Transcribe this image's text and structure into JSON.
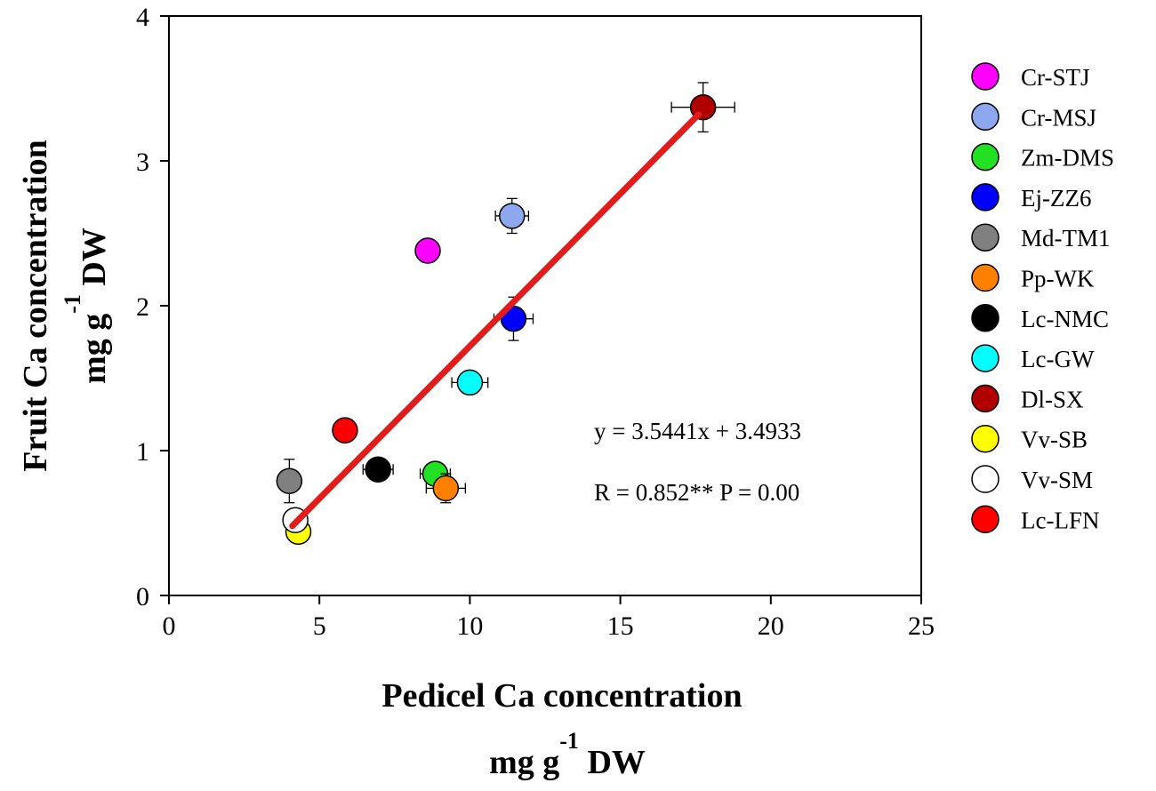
{
  "chart_data": {
    "type": "scatter",
    "xlabel": {
      "main": "Pedicel Ca concentration",
      "unit_prefix": "mg g",
      "unit_exp": "-1",
      "unit_suffix": " DW"
    },
    "ylabel": {
      "main": "Fruit Ca concentration",
      "unit_prefix": "mg g",
      "unit_exp": "-1",
      "unit_suffix": " DW"
    },
    "xlim": [
      0,
      25
    ],
    "ylim": [
      0,
      4
    ],
    "xticks": [
      "0",
      "5",
      "10",
      "15",
      "20",
      "25"
    ],
    "yticks": [
      "0",
      "1",
      "2",
      "3",
      "4"
    ],
    "grid": false,
    "legend_position": "right",
    "series": [
      {
        "name": "Cr-STJ",
        "color": "#ff00ff",
        "x": 8.6,
        "y": 2.38,
        "xerr": 0.3,
        "yerr": 0.08
      },
      {
        "name": "Cr-MSJ",
        "color": "#8ea8f0",
        "x": 11.4,
        "y": 2.62,
        "xerr": 0.55,
        "yerr": 0.12
      },
      {
        "name": "Zm-DMS",
        "color": "#22e022",
        "x": 8.85,
        "y": 0.84,
        "xerr": 0.5,
        "yerr": 0.08
      },
      {
        "name": "Ej-ZZ6",
        "color": "#0000ff",
        "x": 11.45,
        "y": 1.91,
        "xerr": 0.65,
        "yerr": 0.15
      },
      {
        "name": "Md-TM1",
        "color": "#808080",
        "x": 4.0,
        "y": 0.79,
        "xerr": 0.12,
        "yerr": 0.15
      },
      {
        "name": "Pp-WK",
        "color": "#ff8000",
        "x": 9.2,
        "y": 0.74,
        "xerr": 0.65,
        "yerr": 0.1
      },
      {
        "name": "Lc-NMC",
        "color": "#000000",
        "x": 6.95,
        "y": 0.87,
        "xerr": 0.5,
        "yerr": 0.05
      },
      {
        "name": "Lc-GW",
        "color": "#00ffff",
        "x": 10.0,
        "y": 1.47,
        "xerr": 0.6,
        "yerr": 0.05
      },
      {
        "name": "Dl-SX",
        "color": "#b00000",
        "x": 17.75,
        "y": 3.37,
        "xerr": 1.05,
        "yerr": 0.17
      },
      {
        "name": "Vv-SB",
        "color": "#ffff00",
        "x": 4.3,
        "y": 0.44,
        "xerr": 0.1,
        "yerr": 0.04
      },
      {
        "name": "Vv-SM",
        "color": "#ffffff",
        "x": 4.2,
        "y": 0.52,
        "xerr": 0.1,
        "yerr": 0.04
      },
      {
        "name": "Lc-LFN",
        "color": "#ff0000",
        "x": 5.85,
        "y": 1.14,
        "xerr": 0.3,
        "yerr": 0.05
      }
    ],
    "fit_line": {
      "color": "#e21b1b",
      "x": [
        4.1,
        17.6
      ],
      "y": [
        0.48,
        3.32
      ]
    },
    "annotations": [
      "y = 3.5441x + 3.4933",
      "R = 0.852**  P = 0.00"
    ]
  }
}
